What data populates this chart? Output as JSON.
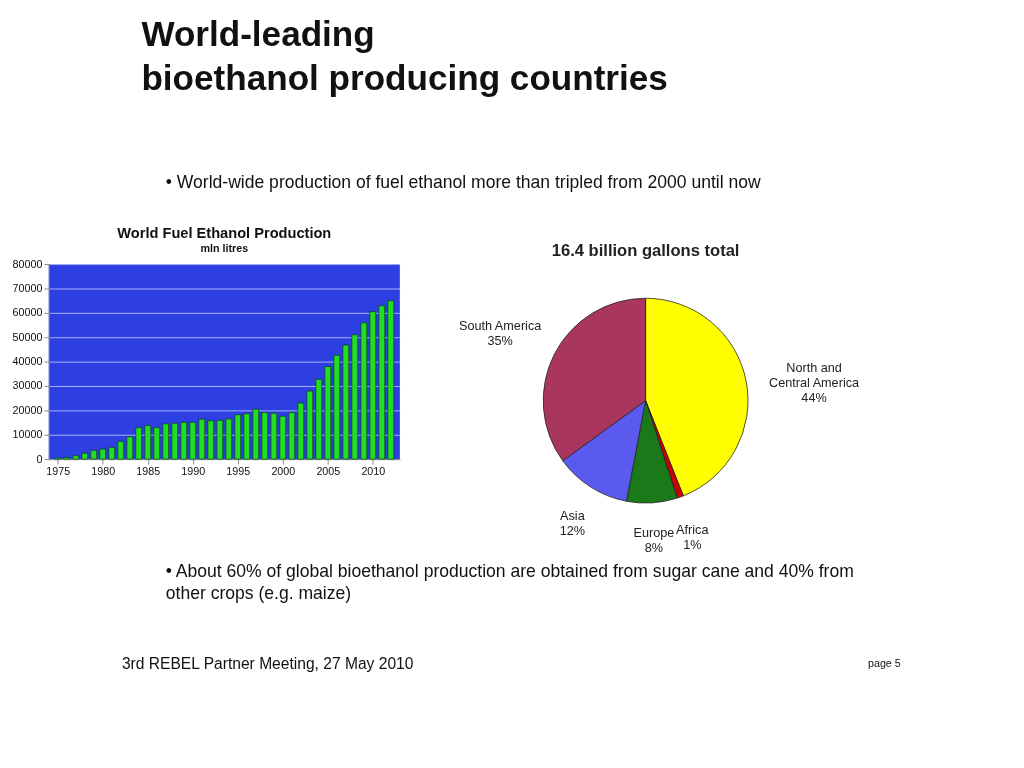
{
  "chart_data": [
    {
      "type": "bar",
      "title": "World Fuel Ethanol Production",
      "subtitle": "mln litres",
      "x": [
        1975,
        1976,
        1977,
        1978,
        1979,
        1980,
        1981,
        1982,
        1983,
        1984,
        1985,
        1986,
        1987,
        1988,
        1989,
        1990,
        1991,
        1992,
        1993,
        1994,
        1995,
        1996,
        1997,
        1998,
        1999,
        2000,
        2001,
        2002,
        2003,
        2004,
        2005,
        2006,
        2007,
        2008,
        2009,
        2010,
        2011,
        2012
      ],
      "series": [
        {
          "color": "#22dd22",
          "values": [
            500,
            700,
            1400,
            2400,
            3600,
            4100,
            4800,
            7300,
            9200,
            12900,
            13800,
            12900,
            14500,
            14700,
            15100,
            15100,
            16400,
            15800,
            15900,
            16500,
            18200,
            18600,
            20500,
            19100,
            18800,
            17600,
            19100,
            23000,
            27900,
            32700,
            38000,
            42600,
            46800,
            51000,
            55900,
            60500,
            62900,
            65000
          ]
        }
      ],
      "xlim": [
        1974,
        2013
      ],
      "xticks": [
        1975,
        1980,
        1985,
        1990,
        1995,
        2000,
        2005,
        2010
      ],
      "ylim": [
        0,
        80000
      ],
      "yticks": [
        0,
        10000,
        20000,
        30000,
        40000,
        50000,
        60000,
        70000,
        80000
      ],
      "grid": "y",
      "annotations": [
        "World-leading",
        "bioethanol producing countries",
        "• World-wide production of fuel ethanol more than tripled from 2000 until now",
        "• About 60% of global bioethanol production are obtained from sugar cane and 40% from other crops (e.g. maize)",
        "3rd REBEL Partner Meeting, 27 May 2010",
        "page 5"
      ]
    },
    {
      "type": "pie",
      "title": "16.4 billion gallons total",
      "categories": [
        "North and Central America",
        "Africa",
        "Europe",
        "Asia",
        "South America"
      ],
      "values": [
        44,
        1,
        8,
        12,
        35
      ],
      "value_labels": [
        "44%",
        "1%",
        "8%",
        "12%",
        "35%"
      ],
      "colors": [
        "#ffff00",
        "#cc0000",
        "#1a7a1a",
        "#5a5aee",
        "#a8365f"
      ]
    }
  ]
}
